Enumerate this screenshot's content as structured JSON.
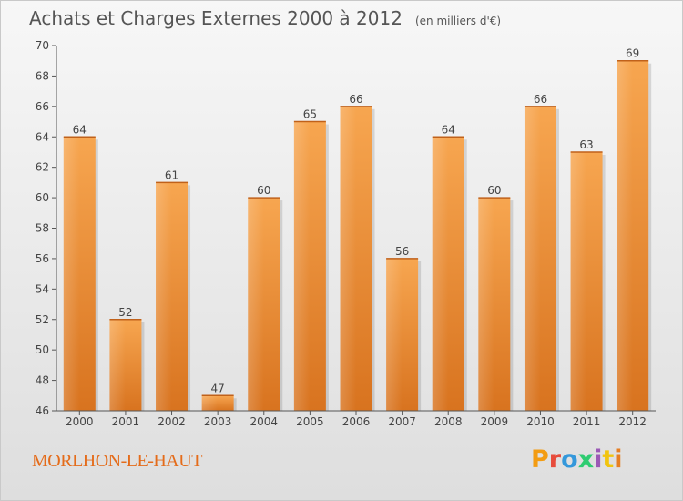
{
  "header": {
    "title": "Achats et Charges Externes 2000 à 2012",
    "subtitle": "(en milliers d'€)"
  },
  "footer": {
    "commune": "MORLHON-LE-HAUT",
    "brand": "Proxiti",
    "brand_colors": [
      "#f39c12",
      "#e74c3c",
      "#3498db",
      "#2ecc71",
      "#9b59b6",
      "#f1c40f",
      "#e67e22"
    ]
  },
  "colors": {
    "bar_top": "#f7a650",
    "bar_bottom": "#d8731f",
    "axis": "#555555",
    "grid": "#dddddd",
    "commune": "#e46c1b"
  },
  "chart_data": {
    "type": "bar",
    "title": "Achats et Charges Externes 2000 à 2012",
    "subtitle": "(en milliers d'€)",
    "categories": [
      "2000",
      "2001",
      "2002",
      "2003",
      "2004",
      "2005",
      "2006",
      "2007",
      "2008",
      "2009",
      "2010",
      "2011",
      "2012"
    ],
    "values": [
      64,
      52,
      61,
      47,
      60,
      65,
      66,
      56,
      64,
      60,
      66,
      63,
      69
    ],
    "ylim": [
      46,
      70
    ],
    "yticks": [
      46,
      48,
      50,
      52,
      54,
      56,
      58,
      60,
      62,
      64,
      66,
      68,
      70
    ],
    "xlabel": "",
    "ylabel": "",
    "grid": false,
    "data_labels": true
  }
}
